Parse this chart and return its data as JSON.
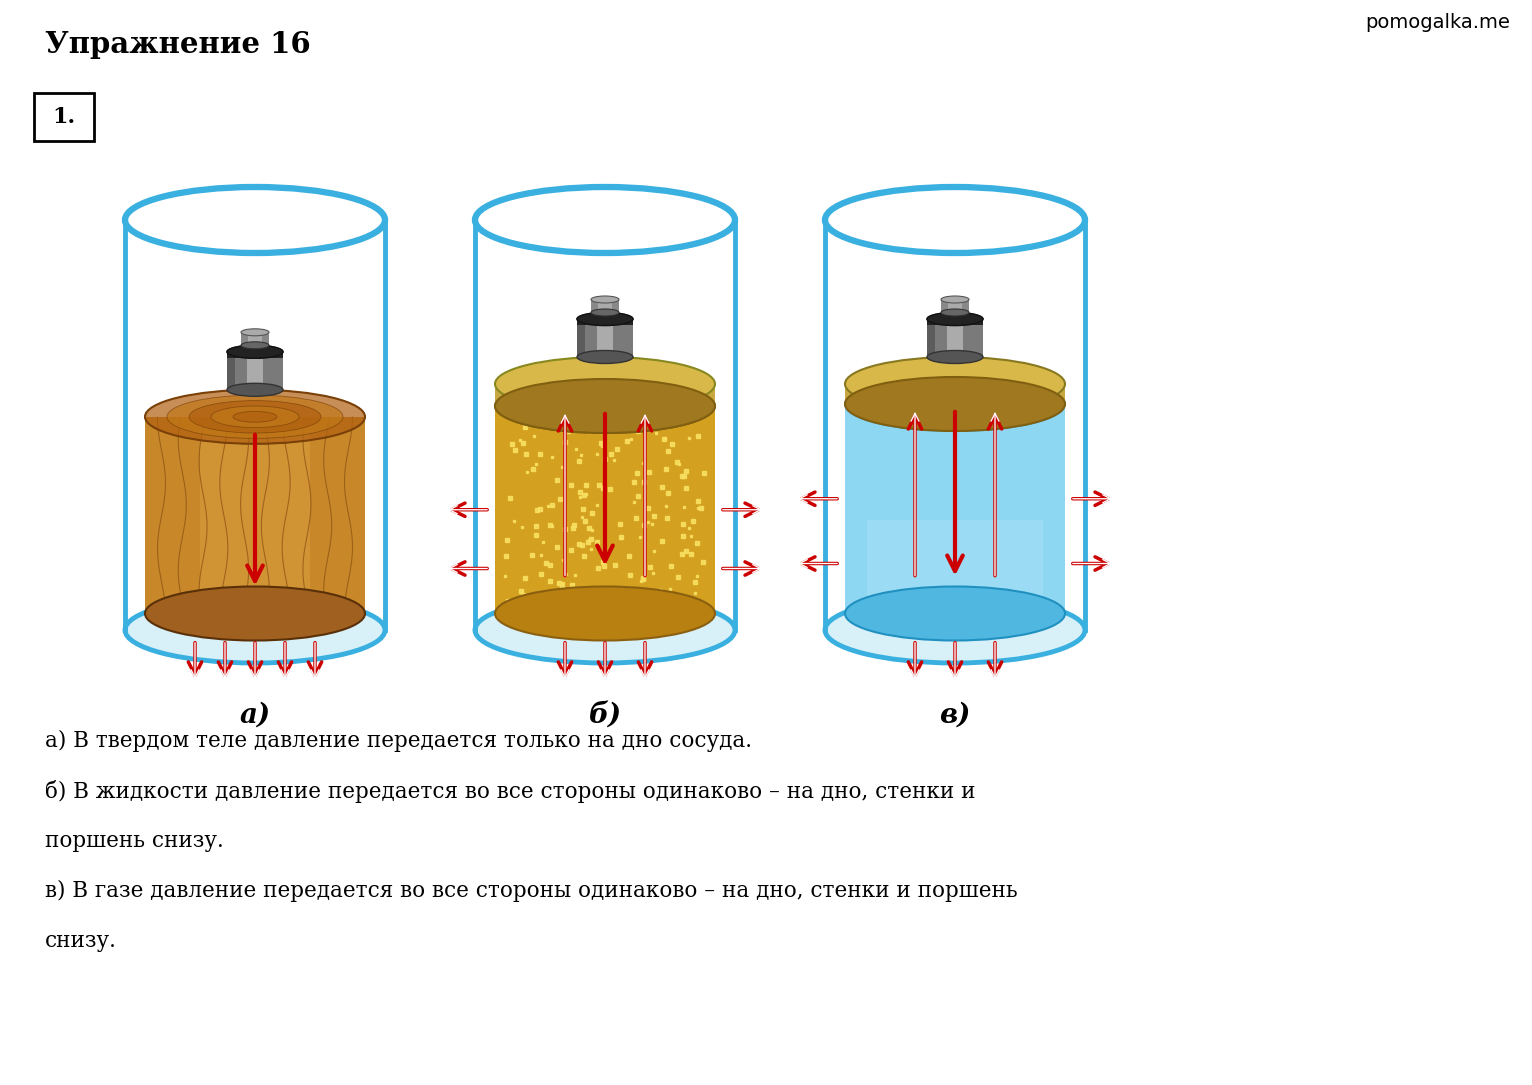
{
  "title": "Упражнение 16",
  "watermark": "pomogalka.me",
  "number_label": "1.",
  "labels_bottom": [
    "а)",
    "б)",
    "в)"
  ],
  "text_lines": [
    "а) В твердом теле давление передается только на дно сосуда.",
    "б) В жидкости давление передается во все стороны одинаково – на дно, стенки и",
    "поршень снизу.",
    "в) В газе давление передается во все стороны одинаково – на дно, стенки и поршень",
    "снизу."
  ],
  "bg_color": "#ffffff",
  "arrow_color": "#cc0000",
  "cylinder_stroke": "#3ab0e0",
  "cylinder_lw": 3.5
}
